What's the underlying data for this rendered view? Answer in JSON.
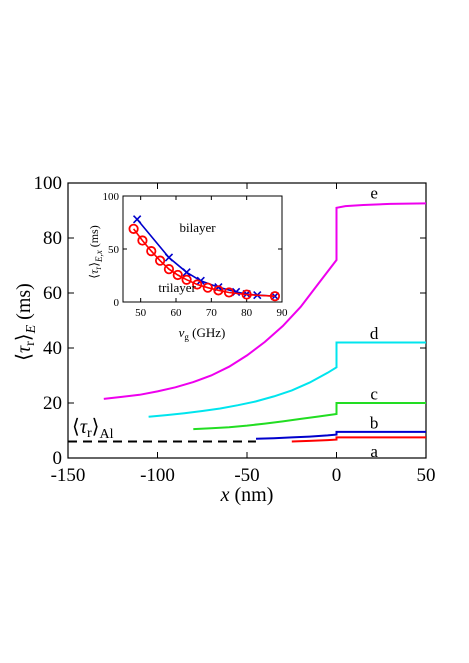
{
  "chart_data": [
    {
      "type": "line",
      "xlabel_var": "x",
      "xlabel_unit": "(nm)",
      "ylabel_var": "τ",
      "ylabel_sub": "r",
      "ylabel_outer_sub": "E",
      "ylabel_unit": "(ms)",
      "xlim": [
        -150,
        50
      ],
      "ylim": [
        0,
        100
      ],
      "xticks": [
        -150,
        -100,
        -50,
        0,
        50
      ],
      "yticks": [
        0,
        20,
        40,
        60,
        80,
        100
      ],
      "reference_line": {
        "label_var": "τ",
        "label_sub": "r",
        "label_outer_sub": "Al",
        "y": 6,
        "x_range": [
          -150,
          -45
        ],
        "color": "#000000",
        "style": "dashed"
      },
      "series": [
        {
          "name": "a",
          "color": "#ff0000",
          "left": {
            "x": [
              -25,
              -15,
              -5,
              0
            ],
            "y": [
              6.0,
              6.2,
              6.5,
              6.7
            ]
          },
          "right": {
            "x": [
              0,
              50
            ],
            "y": [
              7.5,
              7.5
            ]
          }
        },
        {
          "name": "b",
          "color": "#0000cc",
          "left": {
            "x": [
              -45,
              -35,
              -25,
              -15,
              -5,
              0
            ],
            "y": [
              7.0,
              7.2,
              7.5,
              7.8,
              8.2,
              8.5
            ]
          },
          "right": {
            "x": [
              0,
              50
            ],
            "y": [
              9.5,
              9.5
            ]
          }
        },
        {
          "name": "c",
          "color": "#22dd22",
          "left": {
            "x": [
              -80,
              -70,
              -60,
              -50,
              -40,
              -30,
              -20,
              -10,
              0
            ],
            "y": [
              10.5,
              10.8,
              11.2,
              11.8,
              12.5,
              13.3,
              14.2,
              15.1,
              16.0
            ]
          },
          "right": {
            "x": [
              0,
              50
            ],
            "y": [
              20.0,
              20.0
            ]
          }
        },
        {
          "name": "d",
          "color": "#00e5ee",
          "left": {
            "x": [
              -105,
              -95,
              -85,
              -75,
              -65,
              -55,
              -45,
              -35,
              -25,
              -15,
              -5,
              0
            ],
            "y": [
              15.0,
              15.6,
              16.3,
              17.1,
              18.0,
              19.2,
              20.6,
              22.4,
              24.6,
              27.4,
              31.0,
              33.0
            ]
          },
          "right": {
            "x": [
              0,
              50
            ],
            "y": [
              42.0,
              42.0
            ]
          }
        },
        {
          "name": "e",
          "color": "#ee00ee",
          "left": {
            "x": [
              -130,
              -120,
              -110,
              -100,
              -90,
              -80,
              -70,
              -60,
              -50,
              -40,
              -30,
              -20,
              -10,
              0
            ],
            "y": [
              21.5,
              22.2,
              23.0,
              24.2,
              25.7,
              27.6,
              30.0,
              33.2,
              37.3,
              42.2,
              48.0,
              55.0,
              63.5,
              72.0
            ]
          },
          "right": {
            "x": [
              0,
              5,
              15,
              30,
              50
            ],
            "y": [
              91.0,
              91.6,
              92.0,
              92.4,
              92.6
            ]
          }
        }
      ]
    },
    {
      "type": "line",
      "xlabel_var": "ν",
      "xlabel_sub": "g",
      "xlabel_unit": "(GHz)",
      "ylabel_var": "τ",
      "ylabel_sub": "r",
      "ylabel_outer_sub": "E,x",
      "ylabel_unit": "(ms)",
      "xlim": [
        45,
        90
      ],
      "ylim": [
        0,
        100
      ],
      "xticks": [
        50,
        60,
        70,
        80,
        90
      ],
      "yticks": [
        0,
        50,
        100
      ],
      "series": [
        {
          "name": "bilayer",
          "color": "#0000cc",
          "marker": "x",
          "x": [
            49,
            58,
            63,
            67,
            72,
            77,
            80,
            83,
            88
          ],
          "y": [
            78,
            42,
            28,
            20,
            14,
            9.5,
            7.5,
            6.5,
            5.5
          ]
        },
        {
          "name": "trilayer",
          "color": "#ff0000",
          "marker": "o",
          "x": [
            48,
            50.5,
            53,
            55.5,
            58,
            60.5,
            63,
            66,
            69,
            72,
            75,
            80,
            88
          ],
          "y": [
            69,
            58,
            48,
            39,
            31,
            25.5,
            21,
            16.5,
            13.5,
            11,
            9,
            7,
            5.5
          ]
        }
      ]
    }
  ]
}
